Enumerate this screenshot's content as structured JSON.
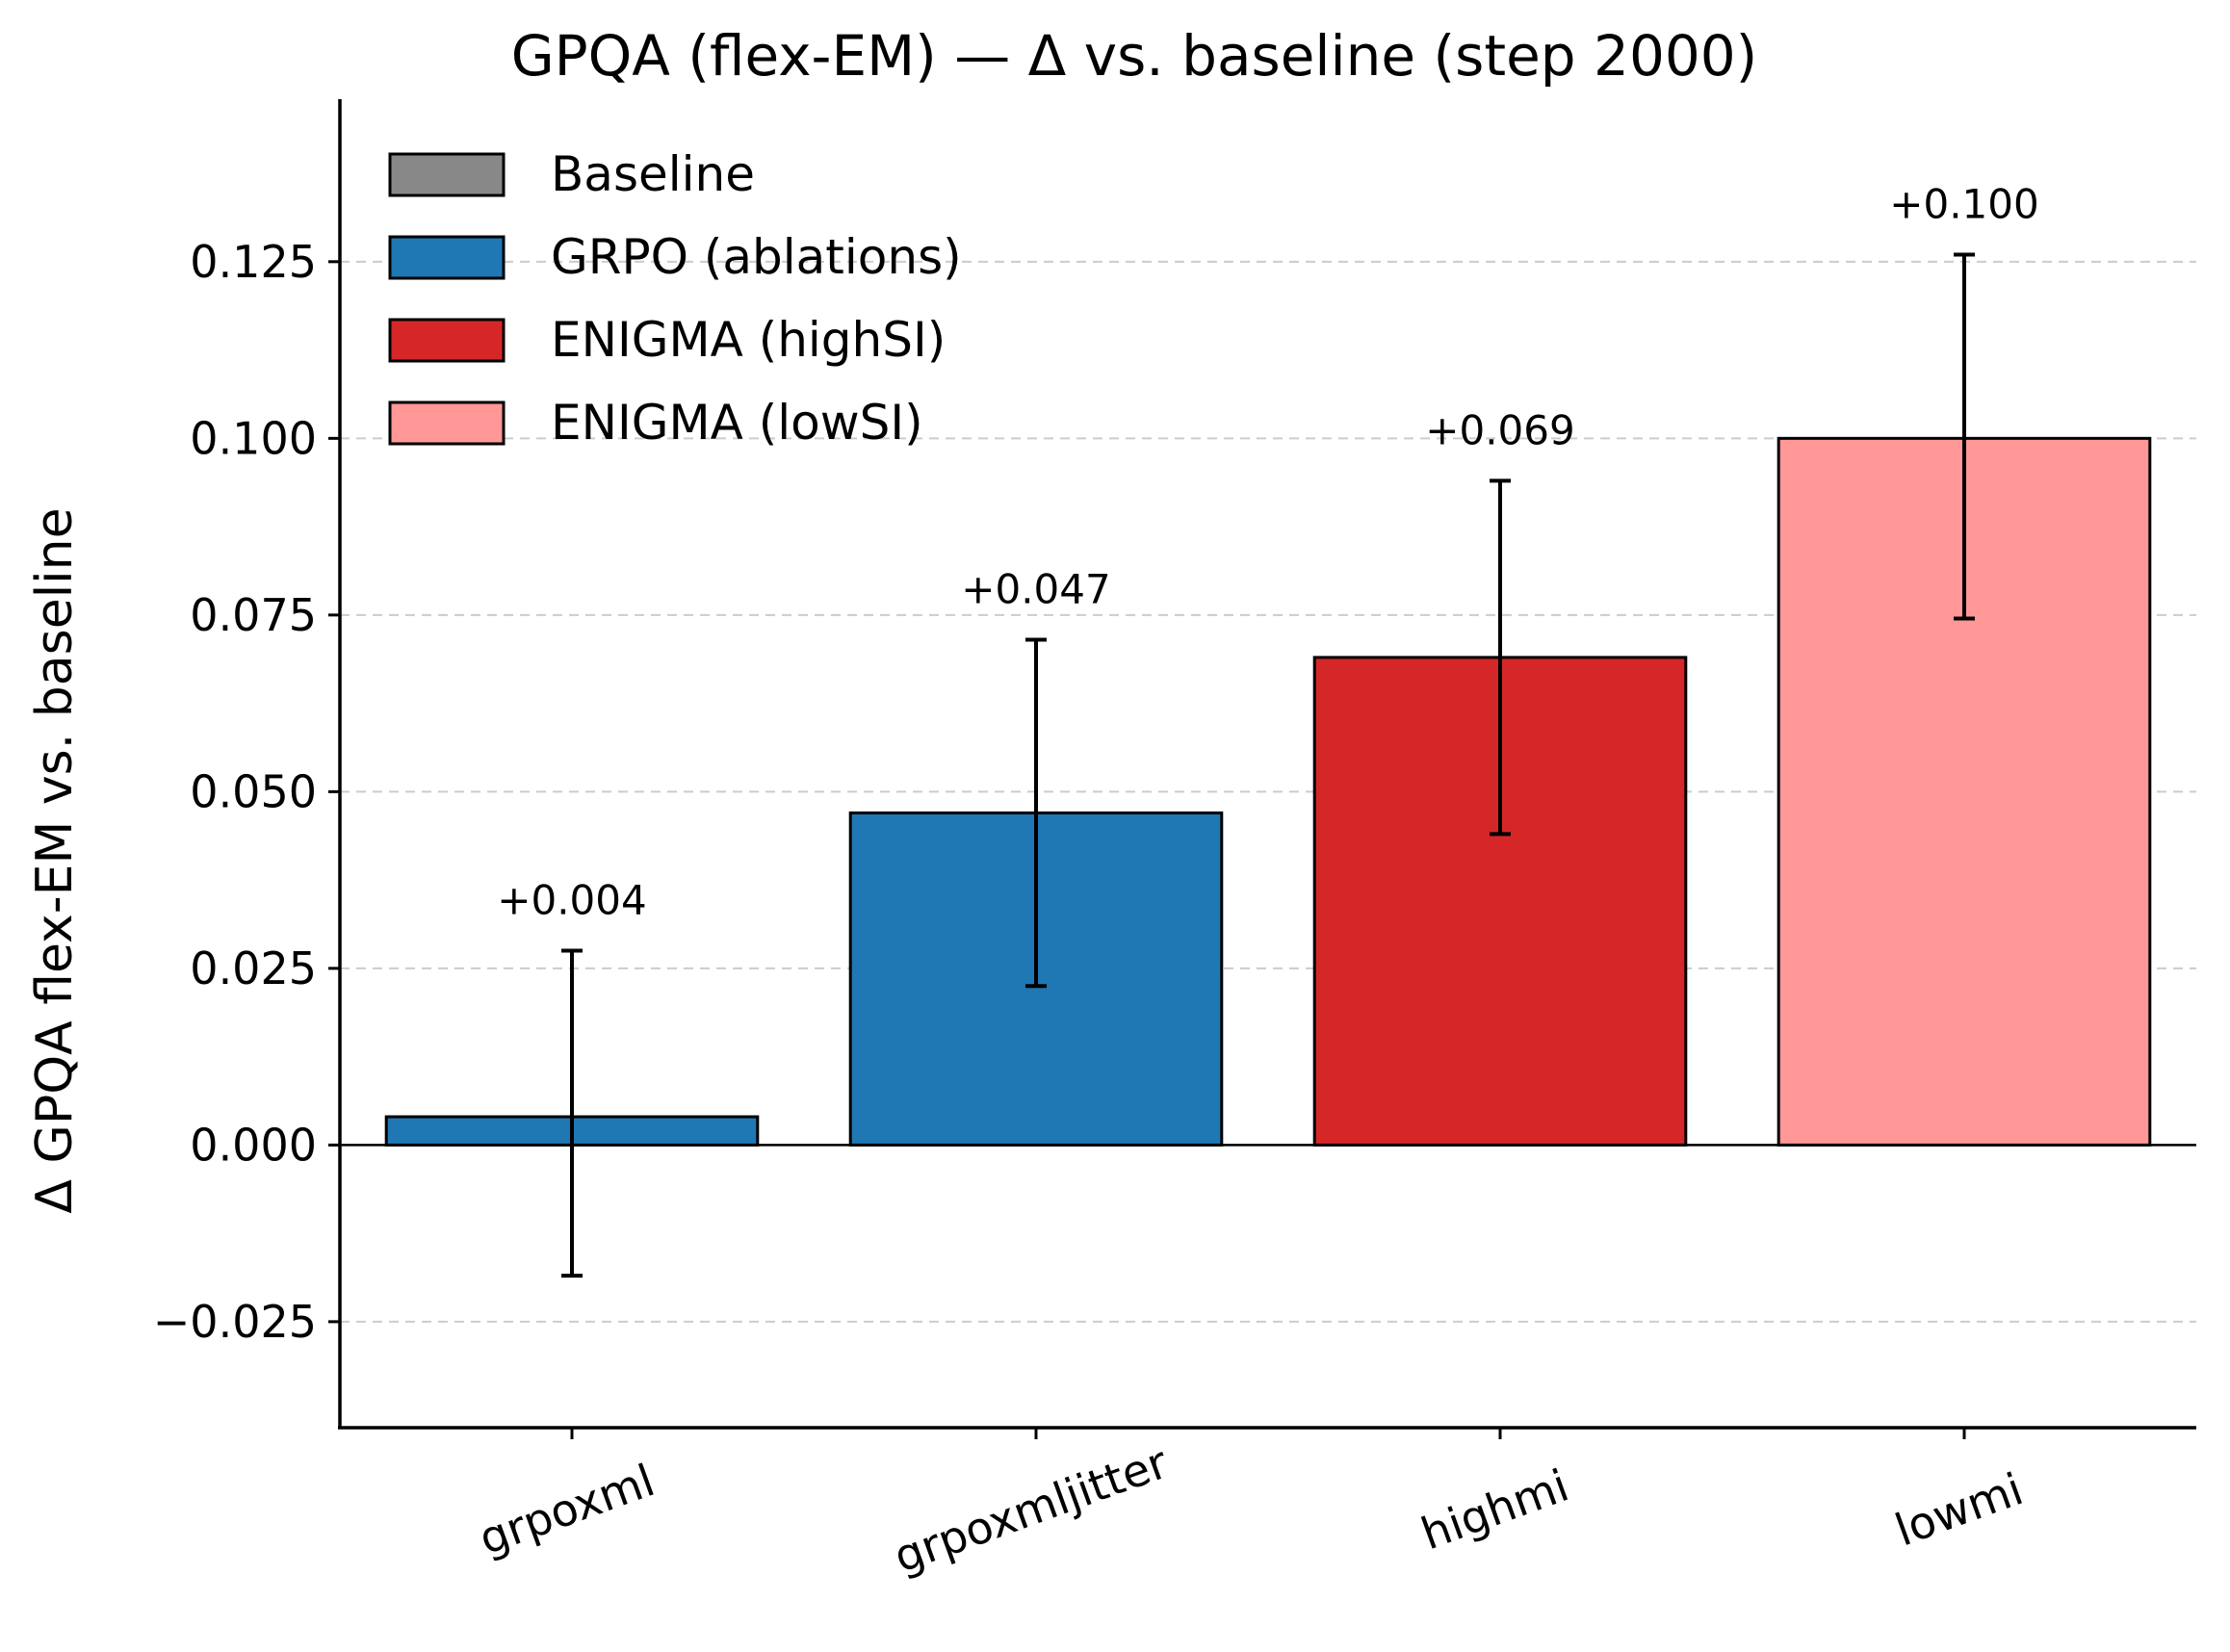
{
  "chart_data": {
    "type": "bar",
    "title": "GPQA (flex-EM) — Δ vs. baseline (step 2000)",
    "xlabel": "",
    "ylabel": "Δ GPQA flex-EM vs. baseline",
    "ylim": [
      -0.04,
      0.148
    ],
    "yticks": [
      -0.025,
      0.0,
      0.025,
      0.05,
      0.075,
      0.1,
      0.125
    ],
    "ytick_labels": [
      "−0.025",
      "0.000",
      "0.025",
      "0.050",
      "0.075",
      "0.100",
      "0.125"
    ],
    "grid": "y-dashed",
    "legend_position": "top-left",
    "categories": [
      "grpoxml",
      "grpoxmljitter",
      "highmi",
      "lowmi"
    ],
    "values": [
      0.004,
      0.047,
      0.069,
      0.1
    ],
    "error_low": [
      -0.0185,
      0.0225,
      0.044,
      0.0745
    ],
    "error_high": [
      0.0275,
      0.0715,
      0.094,
      0.126
    ],
    "bar_labels": [
      "+0.004",
      "+0.047",
      "+0.069",
      "+0.100"
    ],
    "bar_groups": [
      "GRPO (ablations)",
      "GRPO (ablations)",
      "ENIGMA (highSI)",
      "ENIGMA (lowSI)"
    ],
    "legend": [
      {
        "label": "Baseline",
        "color": "#888888"
      },
      {
        "label": "GRPO (ablations)",
        "color": "#1f77b4"
      },
      {
        "label": "ENIGMA (highSI)",
        "color": "#d62728"
      },
      {
        "label": "ENIGMA (lowSI)",
        "color": "#ff9896"
      }
    ]
  }
}
